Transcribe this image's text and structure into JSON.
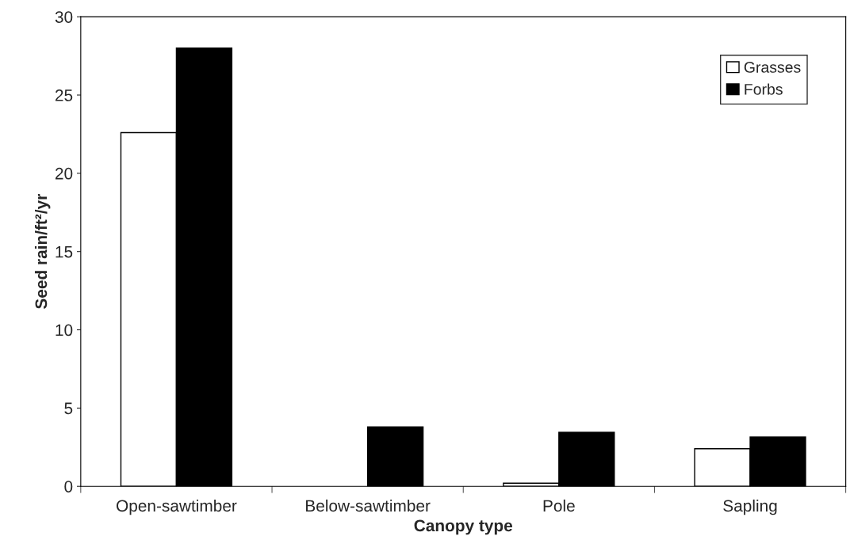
{
  "chart_data": {
    "type": "bar",
    "xlabel": "Canopy type",
    "ylabel": "Seed rain/ft²/yr",
    "categories": [
      "Open-sawtimber",
      "Below-sawtimber",
      "Pole",
      "Sapling"
    ],
    "series": [
      {
        "name": "Grasses",
        "color": "#ffffff",
        "values": [
          22.6,
          null,
          0.2,
          2.4
        ]
      },
      {
        "name": "Forbs",
        "color": "#000000",
        "values": [
          28.0,
          3.8,
          3.45,
          3.15
        ]
      }
    ],
    "ylim": [
      0,
      30
    ],
    "yticks": [
      0,
      5,
      10,
      15,
      20,
      25,
      30
    ],
    "grid": false,
    "legend": "top right"
  }
}
